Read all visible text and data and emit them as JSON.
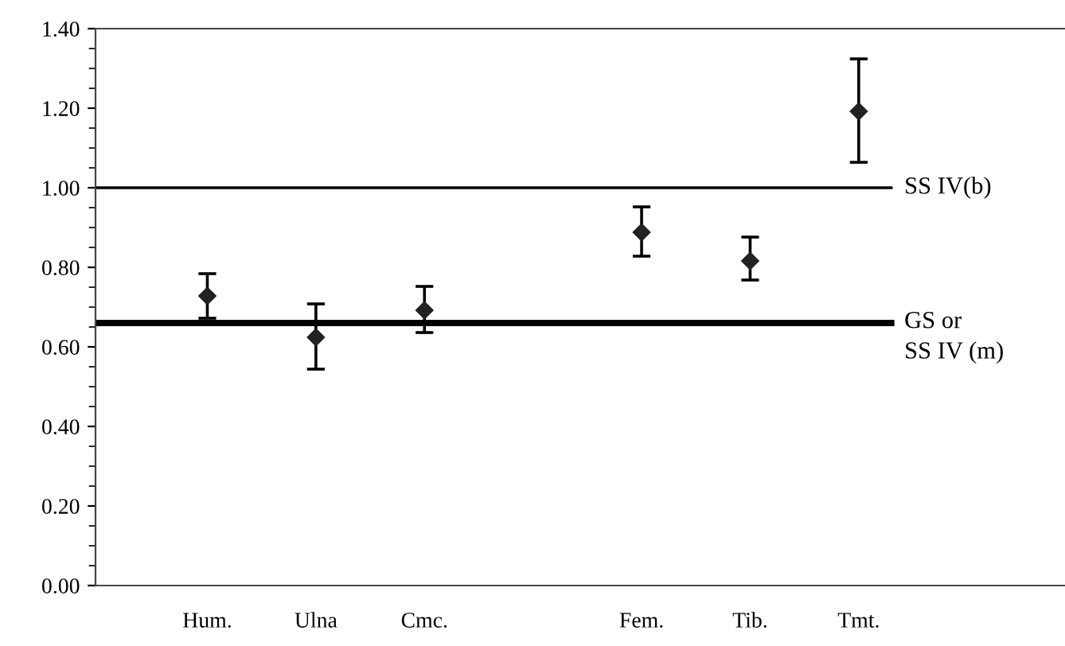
{
  "chart_data": {
    "type": "scatter",
    "categories": [
      "Hum.",
      "Ulna",
      "Cmc.",
      null,
      "Fem.",
      "Tib.",
      "Tmt."
    ],
    "values": [
      0.728,
      0.624,
      0.692,
      null,
      0.888,
      0.816,
      1.192
    ],
    "errors": [
      [
        0.672,
        0.784
      ],
      [
        0.544,
        0.708
      ],
      [
        0.636,
        0.752
      ],
      null,
      [
        0.828,
        0.952
      ],
      [
        0.768,
        0.876
      ],
      [
        1.064,
        1.324
      ]
    ],
    "color": "#222222",
    "marker": "diamond",
    "ylim": [
      0,
      1.4
    ],
    "yticks": [
      {
        "value": 0,
        "label": "0.00"
      },
      {
        "value": 0.2,
        "label": "0.20"
      },
      {
        "value": 0.4,
        "label": "0.40"
      },
      {
        "value": 0.6,
        "label": "0.60"
      },
      {
        "value": 0.8,
        "label": "0.80"
      },
      {
        "value": 1.0,
        "label": "1.00"
      },
      {
        "value": 1.2,
        "label": "1.20"
      },
      {
        "value": 1.4,
        "label": "1.40"
      }
    ],
    "ref_lines": [
      {
        "axis": "y",
        "value": 1.0,
        "label": "SS IV(b)",
        "color": "#000000"
      },
      {
        "axis": "y",
        "value": 0.66,
        "label": "GS or\nSS IV (m)",
        "color": "#000000"
      }
    ],
    "grid": false,
    "legend": false
  }
}
